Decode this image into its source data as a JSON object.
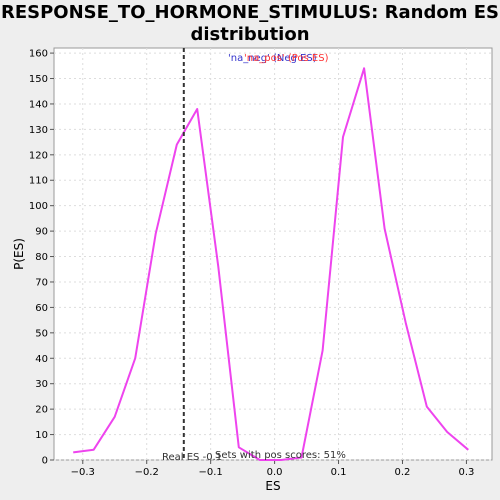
{
  "chart_data": {
    "type": "line",
    "title": "RESPONSE_TO_HORMONE_STIMULUS: Random ES distribution",
    "title_lines": [
      "RESPONSE_TO_HORMONE_STIMULUS: Random ES",
      "distribution"
    ],
    "xlabel": "ES",
    "ylabel": "P(ES)",
    "xlim": [
      -0.345,
      0.34
    ],
    "ylim": [
      0,
      162
    ],
    "xticks": [
      -0.3,
      -0.2,
      -0.1,
      0.0,
      0.1,
      0.2,
      0.3
    ],
    "xtick_labels": [
      "−0.3",
      "−0.2",
      "−0.1",
      "0.0",
      "0.1",
      "0.2",
      "0.3"
    ],
    "yticks": [
      0,
      10,
      20,
      30,
      40,
      50,
      60,
      70,
      80,
      90,
      100,
      110,
      120,
      130,
      140,
      150,
      160
    ],
    "grid": true,
    "series": [
      {
        "color": "#ee44ee",
        "x": [
          -0.315,
          -0.283,
          -0.25,
          -0.218,
          -0.186,
          -0.153,
          -0.121,
          -0.088,
          -0.056,
          -0.023,
          0.01,
          0.042,
          0.075,
          0.107,
          0.14,
          0.172,
          0.205,
          0.238,
          0.27,
          0.303
        ],
        "y": [
          3,
          4,
          17,
          40,
          89,
          124,
          138,
          76,
          5,
          0,
          0,
          1,
          43,
          127,
          154,
          91,
          54,
          21,
          11,
          4
        ]
      }
    ],
    "real_es": {
      "x": -0.142,
      "label": "Real ES -0.1"
    },
    "annotation": "Sets with pos scores: 51%",
    "legend": {
      "placement": "top-center",
      "entry_a": "'na_neg' (Neg ES)",
      "entry_b": "'na_pos' (Pos ES)"
    }
  }
}
